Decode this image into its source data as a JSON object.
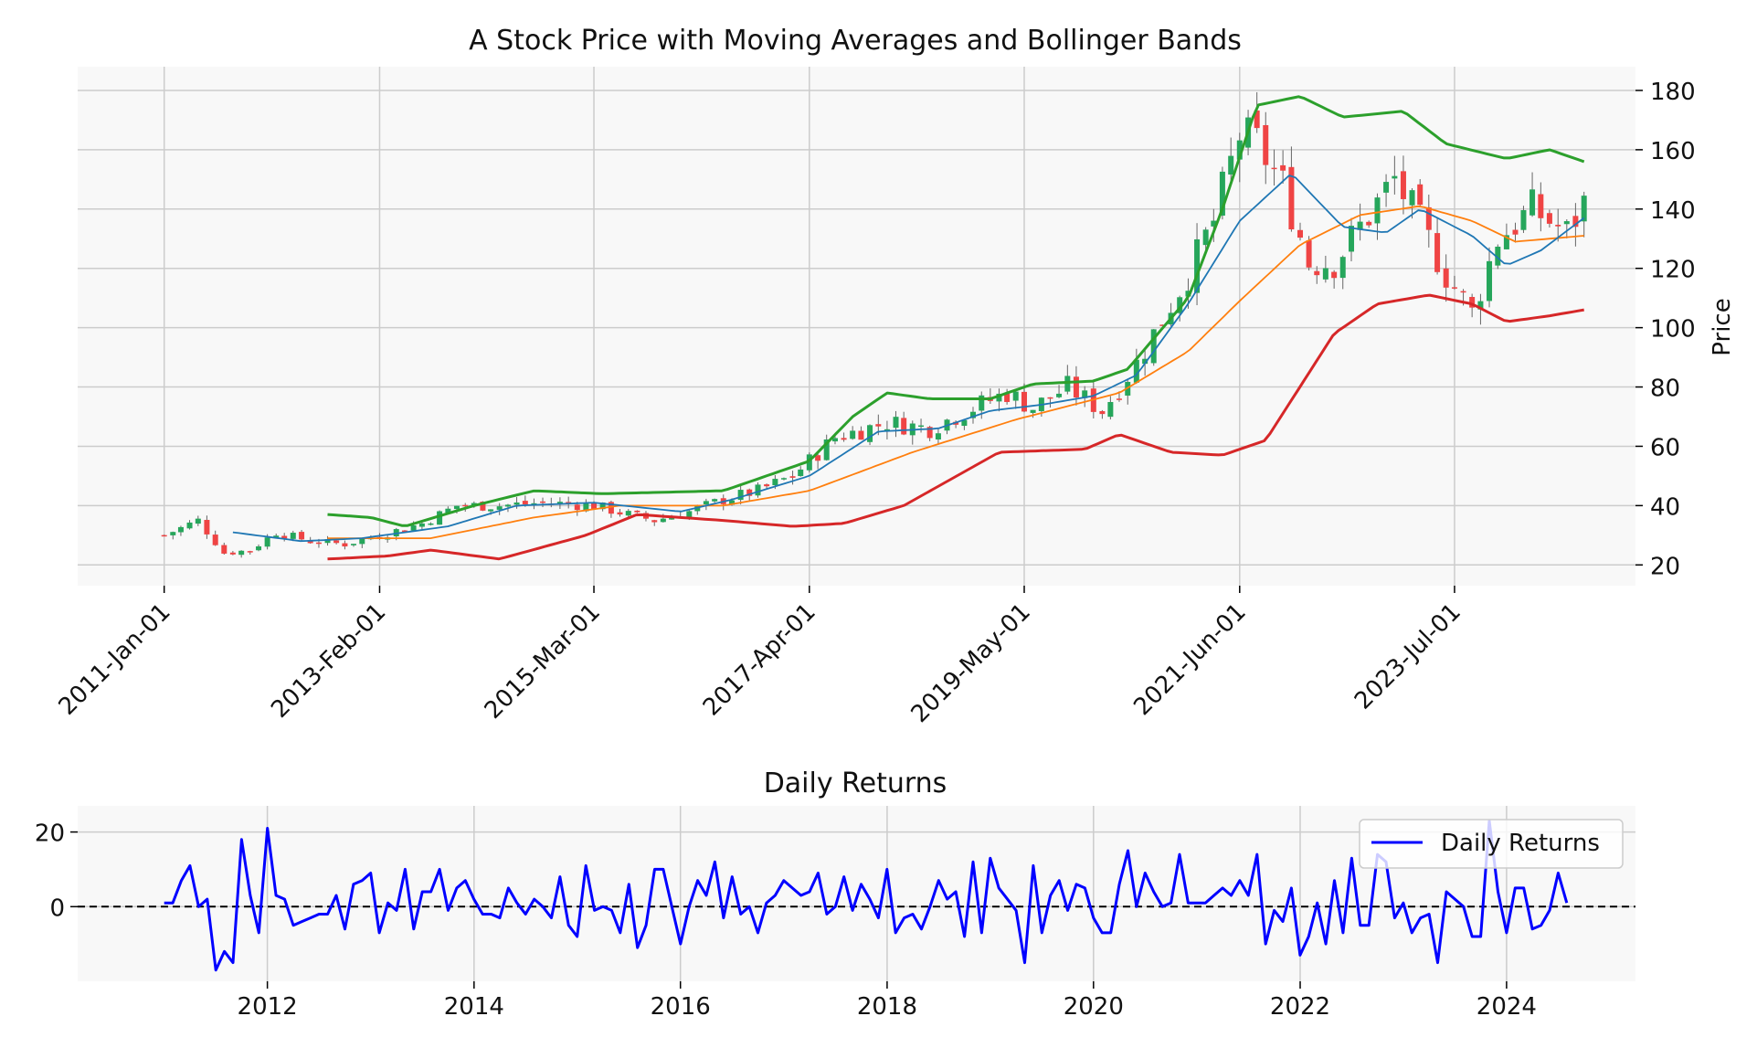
{
  "chart_data": [
    {
      "type": "candlestick",
      "title": "A Stock Price with Moving Averages and Bollinger Bands",
      "ylabel": "Price",
      "ylim": [
        13,
        188
      ],
      "xlim": [
        "2010-03-01",
        "2025-04-01"
      ],
      "y_ticks": [
        20,
        40,
        60,
        80,
        100,
        120,
        140,
        160,
        180
      ],
      "x_ticks": [
        {
          "date": "2011-01-01",
          "label": "2011-Jan-01"
        },
        {
          "date": "2013-02-01",
          "label": "2013-Feb-01"
        },
        {
          "date": "2015-03-01",
          "label": "2015-Mar-01"
        },
        {
          "date": "2017-04-01",
          "label": "2017-Apr-01"
        },
        {
          "date": "2019-05-01",
          "label": "2019-May-01"
        },
        {
          "date": "2021-06-01",
          "label": "2021-Jun-01"
        },
        {
          "date": "2023-07-01",
          "label": "2023-Jul-01"
        }
      ],
      "grid": true,
      "y_axis_side": "right",
      "colors": {
        "up": "#26a65b",
        "down": "#ef4444",
        "ma_short": "#1f77b4",
        "ma_long": "#ff7f0e",
        "upper_band": "#2ca02c",
        "lower_band": "#d62728",
        "background": "#f8f8f8",
        "grid": "#cccccc"
      },
      "close_anchors": [
        [
          "2011-01-01",
          30
        ],
        [
          "2011-05-01",
          35
        ],
        [
          "2011-08-01",
          24
        ],
        [
          "2011-11-01",
          25
        ],
        [
          "2012-02-01",
          31
        ],
        [
          "2012-06-01",
          28
        ],
        [
          "2012-10-01",
          27
        ],
        [
          "2013-02-01",
          30
        ],
        [
          "2013-07-01",
          34
        ],
        [
          "2013-11-01",
          40
        ],
        [
          "2014-04-01",
          40
        ],
        [
          "2014-09-01",
          41
        ],
        [
          "2015-03-01",
          40
        ],
        [
          "2015-07-01",
          37
        ],
        [
          "2015-10-01",
          35
        ],
        [
          "2016-02-01",
          38
        ],
        [
          "2016-06-01",
          42
        ],
        [
          "2016-10-01",
          45
        ],
        [
          "2017-02-01",
          50
        ],
        [
          "2017-07-01",
          63
        ],
        [
          "2018-01-01",
          68
        ],
        [
          "2018-06-01",
          66
        ],
        [
          "2018-11-01",
          73
        ],
        [
          "2019-03-01",
          78
        ],
        [
          "2019-06-01",
          73
        ],
        [
          "2019-10-01",
          80
        ],
        [
          "2020-02-01",
          72
        ],
        [
          "2020-06-01",
          88
        ],
        [
          "2020-09-01",
          103
        ],
        [
          "2020-12-01",
          118
        ],
        [
          "2021-03-01",
          136
        ],
        [
          "2021-06-01",
          165
        ],
        [
          "2021-08-01",
          162
        ],
        [
          "2021-11-01",
          148
        ],
        [
          "2022-02-01",
          122
        ],
        [
          "2022-05-01",
          122
        ],
        [
          "2022-09-01",
          138
        ],
        [
          "2022-12-01",
          150
        ],
        [
          "2023-03-01",
          135
        ],
        [
          "2023-06-01",
          118
        ],
        [
          "2023-09-01",
          105
        ],
        [
          "2023-12-01",
          130
        ],
        [
          "2024-04-01",
          140
        ],
        [
          "2024-08-01",
          132
        ],
        [
          "2024-10-01",
          142
        ]
      ],
      "ma_short": [
        [
          "2011-09-01",
          31
        ],
        [
          "2012-05-01",
          28
        ],
        [
          "2012-12-01",
          29
        ],
        [
          "2013-10-01",
          33
        ],
        [
          "2014-06-01",
          40
        ],
        [
          "2015-03-01",
          41
        ],
        [
          "2016-01-01",
          38
        ],
        [
          "2016-07-01",
          42
        ],
        [
          "2017-04-01",
          50
        ],
        [
          "2017-12-01",
          65
        ],
        [
          "2018-07-01",
          66
        ],
        [
          "2019-01-01",
          72
        ],
        [
          "2019-07-01",
          74
        ],
        [
          "2020-01-01",
          77
        ],
        [
          "2020-06-01",
          84
        ],
        [
          "2020-12-01",
          108
        ],
        [
          "2021-06-01",
          136
        ],
        [
          "2021-12-01",
          152
        ],
        [
          "2022-06-01",
          134
        ],
        [
          "2022-11-01",
          132
        ],
        [
          "2023-03-01",
          140
        ],
        [
          "2023-09-01",
          131
        ],
        [
          "2024-01-01",
          121
        ],
        [
          "2024-05-01",
          126
        ],
        [
          "2024-10-01",
          137
        ]
      ],
      "ma_long": [
        [
          "2012-08-01",
          29
        ],
        [
          "2013-08-01",
          29
        ],
        [
          "2014-08-01",
          36
        ],
        [
          "2015-06-01",
          40
        ],
        [
          "2016-06-01",
          40
        ],
        [
          "2017-04-01",
          45
        ],
        [
          "2018-04-01",
          58
        ],
        [
          "2019-04-01",
          69
        ],
        [
          "2020-04-01",
          78
        ],
        [
          "2020-12-01",
          92
        ],
        [
          "2021-06-01",
          109
        ],
        [
          "2022-01-01",
          128
        ],
        [
          "2022-08-01",
          138
        ],
        [
          "2023-03-01",
          141
        ],
        [
          "2023-09-01",
          136
        ],
        [
          "2024-02-01",
          129
        ],
        [
          "2024-10-01",
          131
        ]
      ],
      "upper_band": [
        [
          "2012-08-01",
          37
        ],
        [
          "2013-01-01",
          36
        ],
        [
          "2013-05-01",
          33
        ],
        [
          "2014-01-01",
          40
        ],
        [
          "2014-08-01",
          45
        ],
        [
          "2015-04-01",
          44
        ],
        [
          "2016-06-01",
          45
        ],
        [
          "2017-04-01",
          55
        ],
        [
          "2017-09-01",
          70
        ],
        [
          "2018-01-01",
          78
        ],
        [
          "2018-06-01",
          76
        ],
        [
          "2019-01-01",
          76
        ],
        [
          "2019-06-01",
          81
        ],
        [
          "2020-01-01",
          82
        ],
        [
          "2020-05-01",
          86
        ],
        [
          "2020-12-01",
          110
        ],
        [
          "2021-04-01",
          140
        ],
        [
          "2021-08-01",
          175
        ],
        [
          "2022-01-01",
          178
        ],
        [
          "2022-06-01",
          171
        ],
        [
          "2023-01-01",
          173
        ],
        [
          "2023-06-01",
          162
        ],
        [
          "2024-01-01",
          157
        ],
        [
          "2024-06-01",
          160
        ],
        [
          "2024-10-01",
          156
        ]
      ],
      "lower_band": [
        [
          "2012-08-01",
          22
        ],
        [
          "2013-03-01",
          23
        ],
        [
          "2013-08-01",
          25
        ],
        [
          "2014-04-01",
          22
        ],
        [
          "2015-02-01",
          30
        ],
        [
          "2015-08-01",
          37
        ],
        [
          "2016-06-01",
          35
        ],
        [
          "2017-02-01",
          33
        ],
        [
          "2017-08-01",
          34
        ],
        [
          "2018-03-01",
          40
        ],
        [
          "2019-02-01",
          58
        ],
        [
          "2019-12-01",
          59
        ],
        [
          "2020-04-01",
          64
        ],
        [
          "2020-10-01",
          58
        ],
        [
          "2021-04-01",
          57
        ],
        [
          "2021-09-01",
          62
        ],
        [
          "2022-05-01",
          98
        ],
        [
          "2022-10-01",
          108
        ],
        [
          "2023-04-01",
          111
        ],
        [
          "2023-09-01",
          108
        ],
        [
          "2024-01-01",
          102
        ],
        [
          "2024-06-01",
          104
        ],
        [
          "2024-10-01",
          106
        ]
      ]
    },
    {
      "type": "line",
      "title": "Daily Returns",
      "ylim": [
        -20,
        27
      ],
      "xlim": [
        "2010-03-01",
        "2025-04-01"
      ],
      "y_ticks": [
        0,
        20
      ],
      "x_ticks": [
        "2012",
        "2014",
        "2016",
        "2018",
        "2020",
        "2022",
        "2024"
      ],
      "grid": true,
      "legend_position": "top-right",
      "reference_line": 0,
      "series": [
        {
          "name": "Daily Returns",
          "color": "#0000ff",
          "values": [
            1,
            1,
            7,
            11,
            0,
            2,
            -17,
            -12,
            -15,
            18,
            3,
            -7,
            21,
            3,
            2,
            -5,
            -4,
            -3,
            -2,
            -2,
            3,
            -6,
            6,
            7,
            9,
            -7,
            1,
            -1,
            10,
            -6,
            4,
            4,
            10,
            -1,
            5,
            7,
            2,
            -2,
            -2,
            -3,
            5,
            1,
            -2,
            2,
            0,
            -3,
            8,
            -5,
            -8,
            11,
            -1,
            0,
            -1,
            -7,
            6,
            -11,
            -5,
            10,
            10,
            0,
            -10,
            0,
            7,
            3,
            12,
            -3,
            8,
            -2,
            0,
            -7,
            1,
            3,
            7,
            5,
            3,
            4,
            9,
            -2,
            0,
            8,
            -1,
            6,
            2,
            -3,
            10,
            -7,
            -3,
            -2,
            -6,
            0,
            7,
            2,
            4,
            -8,
            12,
            -7,
            13,
            5,
            2,
            -1,
            -15,
            11,
            -7,
            3,
            7,
            -1,
            6,
            5,
            -3,
            -7,
            -7,
            6,
            15,
            0,
            9,
            4,
            0,
            1,
            14,
            1,
            1,
            1,
            3,
            5,
            3,
            7,
            3,
            14,
            -10,
            -1,
            -4,
            5,
            -13,
            -8,
            1,
            -10,
            7,
            -7,
            13,
            -5,
            -5,
            14,
            12,
            -3,
            1,
            -7,
            -3,
            -2,
            -15,
            4,
            2,
            0,
            -8,
            -8,
            23,
            4,
            -7,
            5,
            5,
            -6,
            -5,
            -1,
            9,
            1
          ]
        }
      ]
    }
  ]
}
